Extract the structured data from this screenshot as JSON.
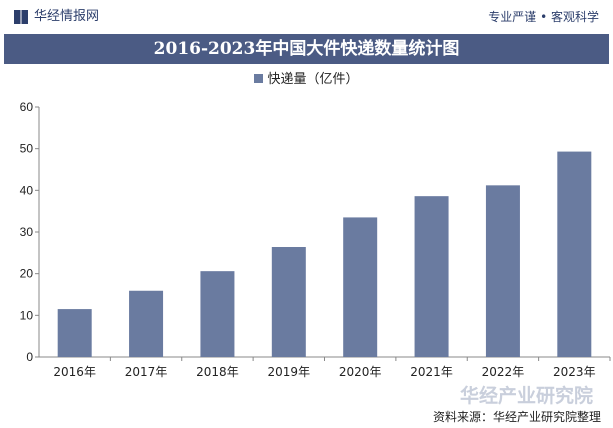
{
  "header": {
    "logo_text": "华经情报网",
    "slogan": "专业严谨 • 客观科学"
  },
  "footer": {
    "source": "资料来源：华经产业研究院整理",
    "watermark": "华经产业研究院"
  },
  "colors": {
    "bar": "#6a7ba0",
    "title_bg": "#4b5b84"
  },
  "chart_data": {
    "type": "bar",
    "title": "2016-2023年中国大件快递数量统计图",
    "categories": [
      "2016年",
      "2017年",
      "2018年",
      "2019年",
      "2020年",
      "2021年",
      "2022年",
      "2023年"
    ],
    "series": [
      {
        "name": "快递量（亿件）",
        "values": [
          11.5,
          15.9,
          20.6,
          26.4,
          33.5,
          38.6,
          41.2,
          49.3
        ]
      }
    ],
    "ylim": [
      0,
      60
    ],
    "yticks": [
      0,
      10,
      20,
      30,
      40,
      50,
      60
    ],
    "grid": false,
    "legend": "top"
  }
}
